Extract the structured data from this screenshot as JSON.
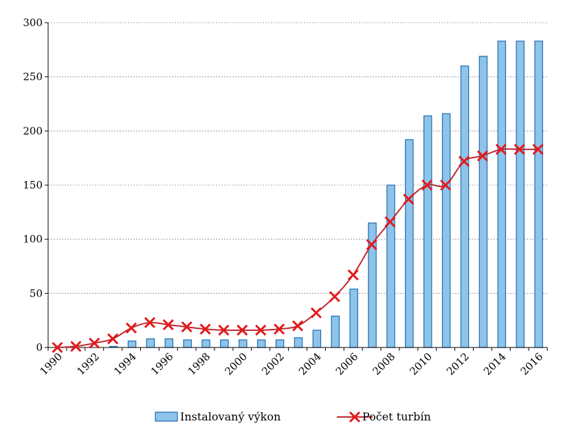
{
  "chart_data": {
    "type": "bar",
    "categories": [
      "1990",
      "1991",
      "1992",
      "1993",
      "1994",
      "1995",
      "1996",
      "1997",
      "1998",
      "1999",
      "2000",
      "2001",
      "2002",
      "2003",
      "2004",
      "2005",
      "2006",
      "2007",
      "2008",
      "2009",
      "2010",
      "2011",
      "2012",
      "2013",
      "2014",
      "2015",
      "2016"
    ],
    "x_tick_labels": [
      "1990",
      "1992",
      "1994",
      "1996",
      "1998",
      "2000",
      "2002",
      "2004",
      "2006",
      "2008",
      "2010",
      "2012",
      "2014",
      "2016"
    ],
    "y_tick_labels": [
      "0",
      "50",
      "100",
      "150",
      "200",
      "250",
      "300"
    ],
    "ylim": [
      0,
      300
    ],
    "grid": true,
    "legend_position": "bottom",
    "series": [
      {
        "name": "Instalovaný výkon",
        "type": "bar",
        "color": "#8EC3EA",
        "edge_color": "#1F6CB0",
        "values": [
          0,
          0,
          0,
          1,
          6,
          8,
          8,
          7,
          7,
          7,
          7,
          7,
          7,
          9,
          16,
          29,
          54,
          115,
          150,
          192,
          214,
          216,
          260,
          269,
          283,
          283,
          283
        ]
      },
      {
        "name": "Počet turbín",
        "type": "line",
        "color": "#E31A1C",
        "line_color": "#C0272D",
        "marker": "x",
        "smooth": true,
        "values": [
          0,
          1,
          4,
          8,
          18,
          23,
          21,
          19,
          17,
          16,
          16,
          16,
          17,
          20,
          32,
          47,
          67,
          95,
          116,
          137,
          150,
          150,
          172,
          177,
          183,
          183,
          183
        ]
      }
    ]
  }
}
